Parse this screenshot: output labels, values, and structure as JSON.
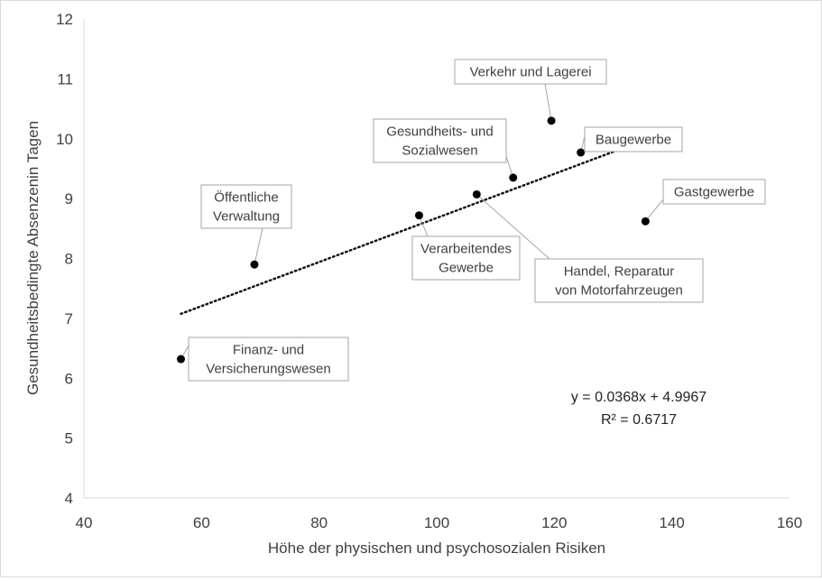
{
  "chart_data": {
    "type": "scatter",
    "xlabel": "Höhe der physischen und psychosozialen Risiken",
    "ylabel": "Gesundheitsbedingte Absenzenin Tagen",
    "xlim": [
      40,
      160
    ],
    "ylim": [
      4,
      12
    ],
    "xticks": [
      40,
      60,
      80,
      100,
      120,
      140,
      160
    ],
    "yticks": [
      4,
      5,
      6,
      7,
      8,
      9,
      10,
      11,
      12
    ],
    "points": [
      {
        "label": [
          "Finanz- und",
          "Versicherungswesen"
        ],
        "x": 56.5,
        "y": 6.32
      },
      {
        "label": [
          "Öffentliche",
          "Verwaltung"
        ],
        "x": 69.0,
        "y": 7.9
      },
      {
        "label": [
          "Verarbeitendes",
          "Gewerbe"
        ],
        "x": 97.0,
        "y": 8.72
      },
      {
        "label": [
          "Handel, Reparatur",
          "von Motorfahrzeugen"
        ],
        "x": 106.8,
        "y": 9.07
      },
      {
        "label": [
          "Gesundheits- und",
          "Sozialwesen"
        ],
        "x": 113.0,
        "y": 9.35
      },
      {
        "label": [
          "Verkehr und Lagerei"
        ],
        "x": 119.5,
        "y": 10.3
      },
      {
        "label": [
          "Baugewerbe"
        ],
        "x": 124.5,
        "y": 9.77
      },
      {
        "label": [
          "Gastgewerbe"
        ],
        "x": 135.5,
        "y": 8.62
      }
    ],
    "trendline": {
      "type": "linear",
      "slope": 0.0368,
      "intercept": 4.9967,
      "x_range": [
        56.5,
        134
      ],
      "style": "dotted"
    },
    "equation": "y = 0.0368x + 4.9967",
    "r_squared": "R² = 0.6717",
    "grid": false,
    "legend": "none"
  }
}
